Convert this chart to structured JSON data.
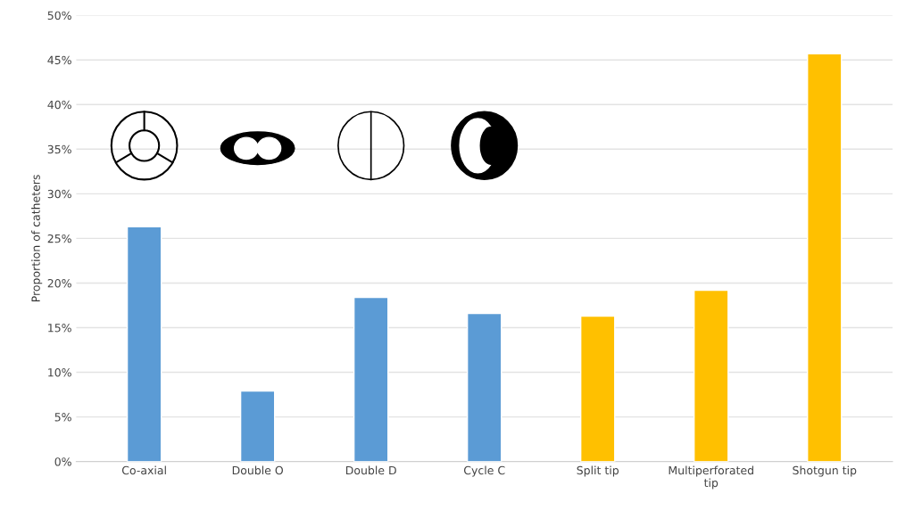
{
  "chart_data": {
    "type": "bar",
    "ylabel": "Proportion of catheters",
    "categories": [
      "Co-axial",
      "Double O",
      "Double D",
      "Cycle C",
      "Split tip",
      "Multiperforated\ntip",
      "Shotgun tip"
    ],
    "values": [
      26.3,
      7.9,
      18.4,
      16.6,
      16.3,
      19.2,
      45.7
    ],
    "colors": [
      "#5b9bd5",
      "#5b9bd5",
      "#5b9bd5",
      "#5b9bd5",
      "#ffc000",
      "#ffc000",
      "#ffc000"
    ],
    "ylim": [
      0,
      50
    ],
    "yticks": [
      {
        "value": 0,
        "label": "0%"
      },
      {
        "value": 5,
        "label": "5%"
      },
      {
        "value": 10,
        "label": "10%"
      },
      {
        "value": 15,
        "label": "15%"
      },
      {
        "value": 20,
        "label": "20%"
      },
      {
        "value": 25,
        "label": "25%"
      },
      {
        "value": 30,
        "label": "30%"
      },
      {
        "value": 35,
        "label": "35%"
      },
      {
        "value": 40,
        "label": "40%"
      },
      {
        "value": 45,
        "label": "45%"
      },
      {
        "value": 50,
        "label": "50%"
      }
    ],
    "grid": "y",
    "legend": false
  }
}
